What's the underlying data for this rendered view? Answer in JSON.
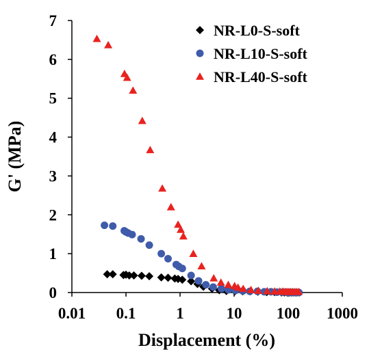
{
  "chart_data": {
    "type": "scatter",
    "title": "",
    "xlabel": "Displacement (%)",
    "ylabel": "G' (MPa)",
    "xscale": "log",
    "xlim": [
      0.01,
      1000
    ],
    "ylim": [
      0,
      7
    ],
    "x_ticks": [
      0.01,
      0.1,
      1,
      10,
      100,
      1000
    ],
    "x_tick_labels": [
      "0.01",
      "0.1",
      "1",
      "10",
      "100",
      "1000"
    ],
    "y_ticks": [
      0,
      1,
      2,
      3,
      4,
      5,
      6,
      7
    ],
    "y_tick_labels": [
      "0",
      "1",
      "2",
      "3",
      "4",
      "5",
      "6",
      "7"
    ],
    "grid": false,
    "legend_position": "top-right",
    "series": [
      {
        "name": "NR-L0-S-soft",
        "marker": "diamond",
        "color": "#000000",
        "x": [
          0.045,
          0.057,
          0.09,
          0.1,
          0.115,
          0.14,
          0.195,
          0.27,
          0.45,
          0.6,
          0.8,
          0.92,
          1.1,
          1.6,
          2.1,
          2.7,
          3.9,
          5.3,
          7.2,
          10.3,
          14.4,
          20.0,
          27.5,
          40.0,
          56.0,
          75.0,
          85.0,
          95.0,
          105.0,
          115.0,
          125.0,
          135.0,
          145.0,
          160.0
        ],
        "y": [
          0.47,
          0.47,
          0.45,
          0.46,
          0.44,
          0.44,
          0.43,
          0.42,
          0.39,
          0.38,
          0.36,
          0.35,
          0.33,
          0.29,
          0.22,
          0.15,
          0.1,
          0.06,
          0.04,
          0.03,
          0.03,
          0.03,
          0.02,
          0.01,
          0.01,
          0.0,
          0.0,
          0.0,
          0.0,
          0.0,
          0.0,
          0.0,
          0.0,
          0.0
        ]
      },
      {
        "name": "NR-L10-S-soft",
        "marker": "circle",
        "color": "#3F5BAA",
        "x": [
          0.04,
          0.057,
          0.093,
          0.1,
          0.11,
          0.13,
          0.19,
          0.27,
          0.45,
          0.6,
          0.85,
          0.95,
          1.1,
          1.6,
          2.2,
          3.0,
          4.1,
          5.8,
          7.8,
          10.5,
          14.5,
          19.5,
          27.0,
          36.0,
          48.0,
          62.0,
          78.0,
          92.0,
          100.0,
          110.0,
          123.0,
          140.0,
          158.0
        ],
        "y": [
          1.73,
          1.71,
          1.59,
          1.56,
          1.53,
          1.49,
          1.38,
          1.22,
          1.0,
          0.87,
          0.72,
          0.67,
          0.62,
          0.44,
          0.3,
          0.2,
          0.14,
          0.1,
          0.07,
          0.05,
          0.04,
          0.03,
          0.03,
          0.02,
          0.02,
          0.01,
          0.01,
          0.01,
          0.0,
          0.0,
          0.0,
          0.0,
          0.0
        ]
      },
      {
        "name": "NR-L40-S-soft",
        "marker": "triangle",
        "color": "#E8231F",
        "x": [
          0.029,
          0.047,
          0.094,
          0.105,
          0.135,
          0.2,
          0.28,
          0.47,
          0.68,
          0.92,
          1.03,
          1.15,
          1.76,
          2.5,
          4.2,
          5.7,
          7.8,
          10.2,
          11.8,
          14.7,
          20.5,
          28.0,
          41.0,
          56.0,
          70.0,
          80.0,
          88.0,
          95.0,
          102.0,
          110.0,
          120.0,
          132.0,
          143.0,
          155.0
        ],
        "y": [
          6.53,
          6.37,
          5.63,
          5.53,
          5.2,
          4.42,
          3.67,
          2.68,
          2.2,
          1.75,
          1.62,
          1.45,
          1.0,
          0.68,
          0.37,
          0.26,
          0.2,
          0.17,
          0.13,
          0.1,
          0.07,
          0.05,
          0.04,
          0.03,
          0.03,
          0.03,
          0.02,
          0.02,
          0.02,
          0.02,
          0.02,
          0.02,
          0.02,
          0.02
        ]
      }
    ]
  }
}
